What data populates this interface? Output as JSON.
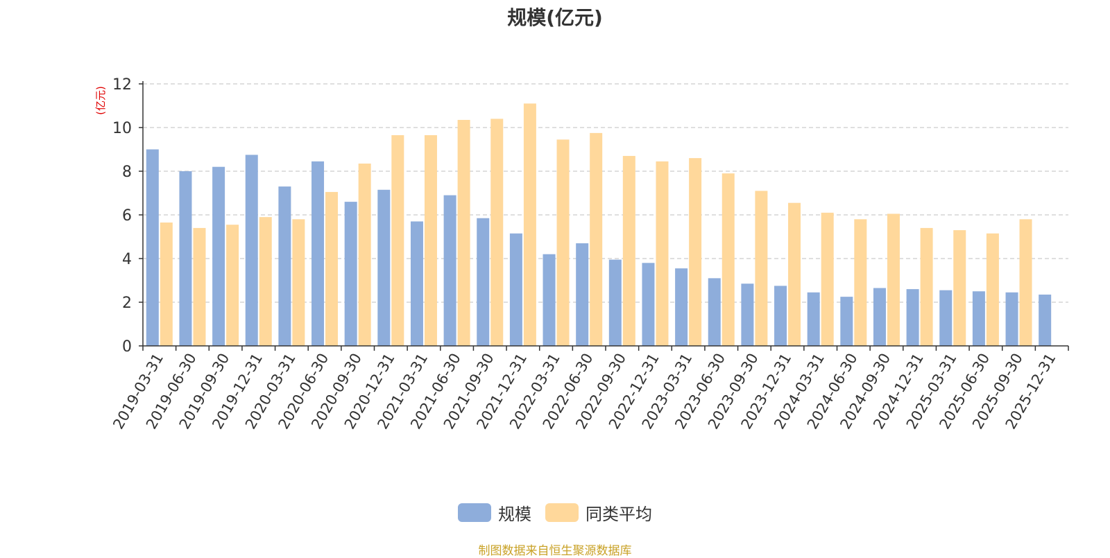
{
  "chart_data": {
    "type": "bar",
    "title": "规模(亿元)",
    "ylabel": "(亿元)",
    "xlabel": "",
    "ylim": [
      0,
      12
    ],
    "yticks": [
      0,
      2,
      4,
      6,
      8,
      10,
      12
    ],
    "grid": true,
    "legend_position": "bottom-center",
    "categories": [
      "2019-03-31",
      "2019-06-30",
      "2019-09-30",
      "2019-12-31",
      "2020-03-31",
      "2020-06-30",
      "2020-09-30",
      "2020-12-31",
      "2021-03-31",
      "2021-06-30",
      "2021-09-30",
      "2021-12-31",
      "2022-03-31",
      "2022-06-30",
      "2022-09-30",
      "2022-12-31",
      "2023-03-31",
      "2023-06-30",
      "2023-09-30",
      "2023-12-31",
      "2024-03-31",
      "2024-06-30",
      "2024-09-30",
      "2024-12-31",
      "2025-03-31",
      "2025-06-30",
      "2025-09-30",
      "2025-12-31"
    ],
    "series": [
      {
        "name": "规模",
        "color": "#8eaddb",
        "values": [
          9.0,
          8.0,
          8.2,
          8.75,
          7.3,
          8.45,
          6.6,
          7.15,
          5.7,
          6.9,
          5.85,
          5.15,
          4.2,
          4.7,
          3.95,
          3.8,
          3.55,
          3.1,
          2.85,
          2.75,
          2.45,
          2.25,
          2.65,
          2.6,
          2.55,
          2.5,
          2.45,
          2.35
        ]
      },
      {
        "name": "同类平均",
        "color": "#ffd89b",
        "values": [
          5.65,
          5.4,
          5.55,
          5.9,
          5.8,
          7.05,
          8.35,
          9.65,
          9.65,
          10.35,
          10.4,
          11.1,
          9.45,
          9.75,
          8.7,
          8.45,
          8.6,
          7.9,
          7.1,
          6.55,
          6.1,
          5.8,
          6.05,
          5.4,
          5.3,
          5.15,
          5.8,
          null
        ]
      }
    ]
  },
  "source_note": "制图数据来自恒生聚源数据库",
  "colors": {
    "axis": "#333333",
    "grid": "#cccccc",
    "ylabel": "#e00000",
    "source_note": "#c9a227"
  }
}
